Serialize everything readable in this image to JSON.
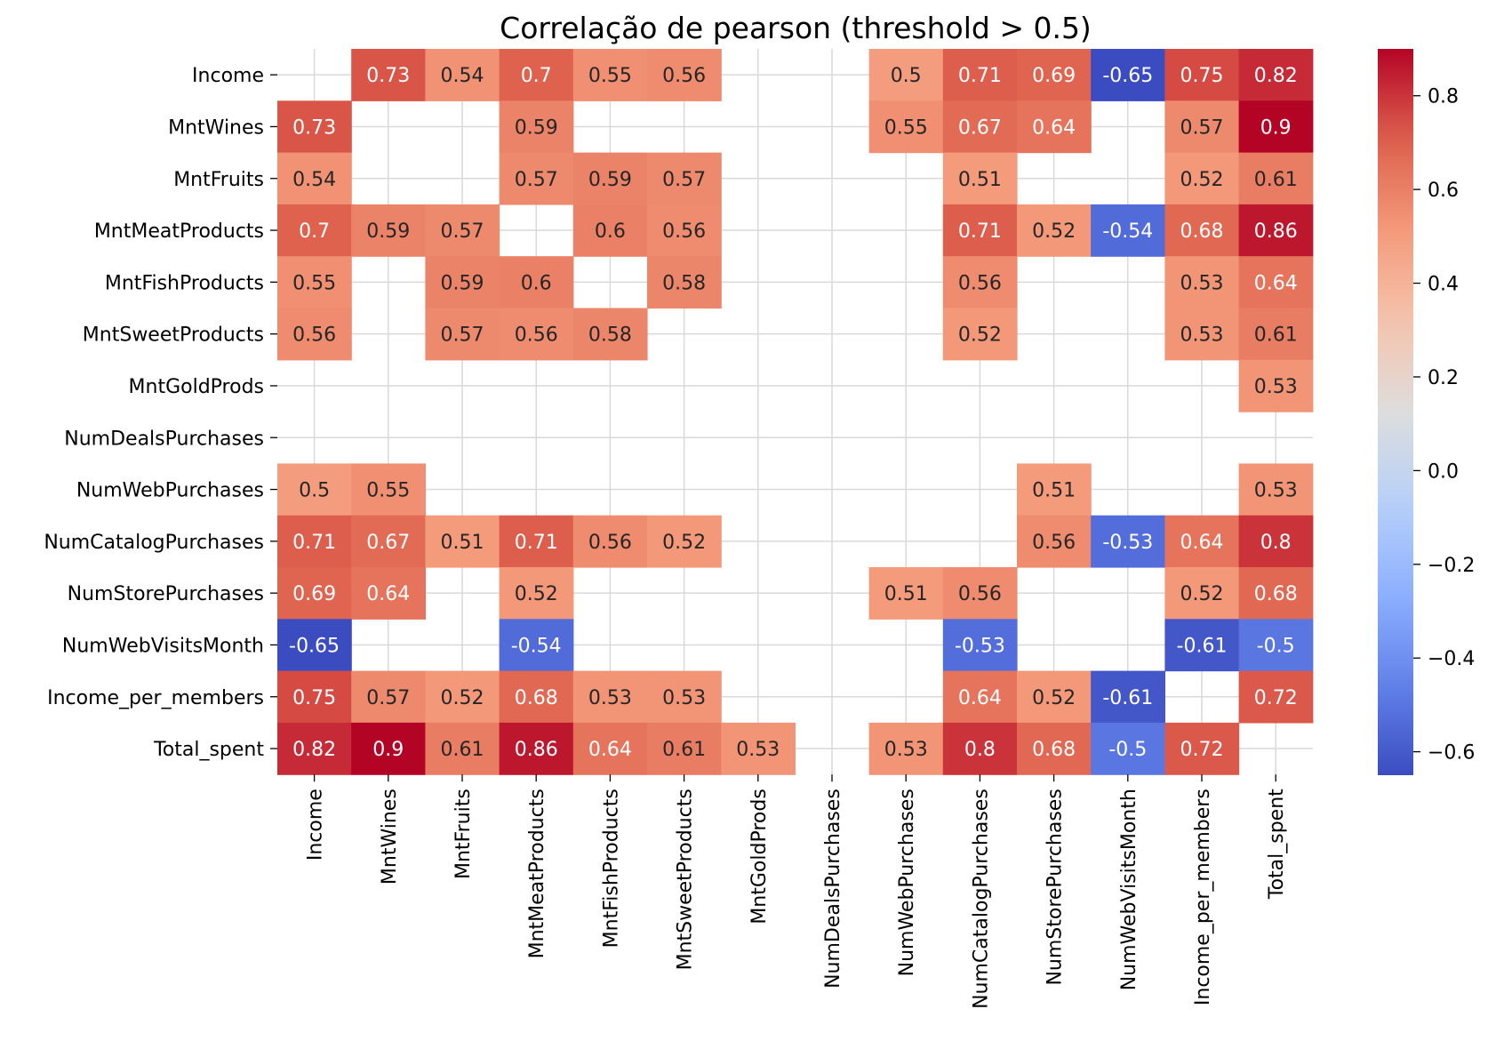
{
  "chart_data": {
    "type": "heatmap",
    "title": "Correlação de pearson (threshold > 0.5)",
    "rows": [
      "Income",
      "MntWines",
      "MntFruits",
      "MntMeatProducts",
      "MntFishProducts",
      "MntSweetProducts",
      "MntGoldProds",
      "NumDealsPurchases",
      "NumWebPurchases",
      "NumCatalogPurchases",
      "NumStorePurchases",
      "NumWebVisitsMonth",
      "Income_per_members",
      "Total_spent"
    ],
    "columns": [
      "Income",
      "MntWines",
      "MntFruits",
      "MntMeatProducts",
      "MntFishProducts",
      "MntSweetProducts",
      "MntGoldProds",
      "NumDealsPurchases",
      "NumWebPurchases",
      "NumCatalogPurchases",
      "NumStorePurchases",
      "NumWebVisitsMonth",
      "Income_per_members",
      "Total_spent"
    ],
    "values": [
      [
        null,
        0.73,
        0.54,
        0.7,
        0.55,
        0.56,
        null,
        null,
        0.5,
        0.71,
        0.69,
        -0.65,
        0.75,
        0.82
      ],
      [
        0.73,
        null,
        null,
        0.59,
        null,
        null,
        null,
        null,
        0.55,
        0.67,
        0.64,
        null,
        0.57,
        0.9
      ],
      [
        0.54,
        null,
        null,
        0.57,
        0.59,
        0.57,
        null,
        null,
        null,
        0.51,
        null,
        null,
        0.52,
        0.61
      ],
      [
        0.7,
        0.59,
        0.57,
        null,
        0.6,
        0.56,
        null,
        null,
        null,
        0.71,
        0.52,
        -0.54,
        0.68,
        0.86
      ],
      [
        0.55,
        null,
        0.59,
        0.6,
        null,
        0.58,
        null,
        null,
        null,
        0.56,
        null,
        null,
        0.53,
        0.64
      ],
      [
        0.56,
        null,
        0.57,
        0.56,
        0.58,
        null,
        null,
        null,
        null,
        0.52,
        null,
        null,
        0.53,
        0.61
      ],
      [
        null,
        null,
        null,
        null,
        null,
        null,
        null,
        null,
        null,
        null,
        null,
        null,
        null,
        0.53
      ],
      [
        null,
        null,
        null,
        null,
        null,
        null,
        null,
        null,
        null,
        null,
        null,
        null,
        null,
        null
      ],
      [
        0.5,
        0.55,
        null,
        null,
        null,
        null,
        null,
        null,
        null,
        null,
        0.51,
        null,
        null,
        0.53
      ],
      [
        0.71,
        0.67,
        0.51,
        0.71,
        0.56,
        0.52,
        null,
        null,
        null,
        null,
        0.56,
        -0.53,
        0.64,
        0.8
      ],
      [
        0.69,
        0.64,
        null,
        0.52,
        null,
        null,
        null,
        null,
        0.51,
        0.56,
        null,
        null,
        0.52,
        0.68
      ],
      [
        -0.65,
        null,
        null,
        -0.54,
        null,
        null,
        null,
        null,
        null,
        -0.53,
        null,
        null,
        -0.61,
        -0.5
      ],
      [
        0.75,
        0.57,
        0.52,
        0.68,
        0.53,
        0.53,
        null,
        null,
        null,
        0.64,
        0.52,
        -0.61,
        null,
        0.72
      ],
      [
        0.82,
        0.9,
        0.61,
        0.86,
        0.64,
        0.61,
        0.53,
        null,
        0.53,
        0.8,
        0.68,
        -0.5,
        0.72,
        null
      ]
    ],
    "colormap": "coolwarm",
    "vmin": -0.65,
    "vmax": 0.9,
    "colorbar": {
      "ticks": [
        0.8,
        0.6,
        0.4,
        0.2,
        0.0,
        -0.2,
        -0.4,
        -0.6
      ],
      "tick_labels": [
        "0.8",
        "0.6",
        "0.4",
        "0.2",
        "0.0",
        "−0.2",
        "−0.4",
        "−0.6"
      ]
    },
    "grid": true,
    "colors": {
      "grid": "#d9d9d9",
      "text_dark": "#262626",
      "text_light": "#ffffff"
    }
  }
}
